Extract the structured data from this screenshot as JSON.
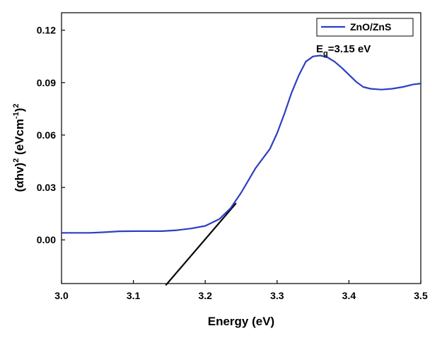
{
  "chart_data": {
    "type": "line",
    "title": "",
    "xlabel": "Energy (eV)",
    "ylabel_parts": [
      "(αhv)",
      "2",
      " (eVcm",
      "-1",
      ")",
      "2"
    ],
    "xlim": [
      3.0,
      3.5
    ],
    "ylim": [
      -0.025,
      0.13
    ],
    "x_ticks": [
      3.0,
      3.1,
      3.2,
      3.3,
      3.4,
      3.5
    ],
    "x_tick_labels": [
      "3.0",
      "3.1",
      "3.2",
      "3.3",
      "3.4",
      "3.5"
    ],
    "y_ticks": [
      0.0,
      0.03,
      0.06,
      0.09,
      0.12
    ],
    "y_tick_labels": [
      "0.00",
      "0.03",
      "0.06",
      "0.09",
      "0.12"
    ],
    "grid": false,
    "legend_position": "top-right",
    "series": [
      {
        "name": "ZnO/ZnS",
        "color": "#2b3fc4",
        "x": [
          3.0,
          3.02,
          3.04,
          3.06,
          3.08,
          3.1,
          3.12,
          3.14,
          3.16,
          3.18,
          3.2,
          3.22,
          3.235,
          3.25,
          3.27,
          3.29,
          3.3,
          3.31,
          3.32,
          3.33,
          3.34,
          3.35,
          3.36,
          3.37,
          3.38,
          3.39,
          3.4,
          3.41,
          3.42,
          3.43,
          3.445,
          3.46,
          3.475,
          3.49,
          3.5
        ],
        "values": [
          0.004,
          0.004,
          0.004,
          0.0044,
          0.0049,
          0.005,
          0.005,
          0.005,
          0.0055,
          0.0065,
          0.008,
          0.012,
          0.018,
          0.027,
          0.041,
          0.052,
          0.061,
          0.072,
          0.084,
          0.094,
          0.102,
          0.105,
          0.1055,
          0.1045,
          0.102,
          0.0985,
          0.0945,
          0.0905,
          0.0875,
          0.0865,
          0.086,
          0.0865,
          0.0875,
          0.089,
          0.0895
        ]
      }
    ],
    "fit_line": {
      "color": "#000000",
      "x": [
        3.145,
        3.243
      ],
      "values": [
        -0.026,
        0.021
      ]
    },
    "annotation_parts": [
      "E",
      "g",
      "=3.15 eV"
    ]
  }
}
